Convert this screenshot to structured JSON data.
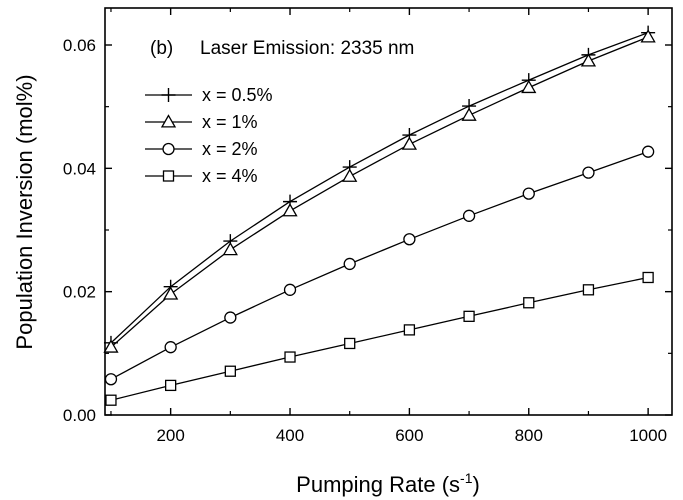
{
  "chart_data": {
    "type": "line",
    "panel_label": "(b)",
    "annotation": "Laser Emission: 2335 nm",
    "xlabel_main": "Pumping Rate (s",
    "xlabel_sup": "-1",
    "xlabel_close": ")",
    "ylabel": "Population Inversion (mol%)",
    "xlim": [
      90,
      1040
    ],
    "ylim": [
      0.0,
      0.066
    ],
    "x_ticks": [
      200,
      400,
      600,
      800,
      1000
    ],
    "x_tick_labels": [
      "200",
      "400",
      "600",
      "800",
      "1000"
    ],
    "y_ticks": [
      0.0,
      0.02,
      0.04,
      0.06
    ],
    "y_tick_labels": [
      "0.00",
      "0.02",
      "0.04",
      "0.06"
    ],
    "x": [
      100,
      200,
      300,
      400,
      500,
      600,
      700,
      800,
      900,
      1000
    ],
    "legend_position": "upper-left",
    "series": [
      {
        "name": "x = 0.5%",
        "marker": "plus",
        "values": [
          0.0117,
          0.0208,
          0.0282,
          0.0346,
          0.0402,
          0.0454,
          0.0501,
          0.0543,
          0.0584,
          0.062
        ]
      },
      {
        "name": "x = 1%",
        "marker": "triangle",
        "values": [
          0.011,
          0.0196,
          0.0268,
          0.0331,
          0.0387,
          0.0439,
          0.0486,
          0.0531,
          0.0574,
          0.0613
        ]
      },
      {
        "name": "x = 2%",
        "marker": "circle",
        "values": [
          0.0058,
          0.011,
          0.0158,
          0.0203,
          0.0245,
          0.0285,
          0.0323,
          0.0359,
          0.0393,
          0.0427
        ]
      },
      {
        "name": "x = 4%",
        "marker": "square",
        "values": [
          0.0024,
          0.0048,
          0.0071,
          0.0094,
          0.0116,
          0.0138,
          0.016,
          0.0182,
          0.0203,
          0.0223
        ]
      }
    ]
  }
}
